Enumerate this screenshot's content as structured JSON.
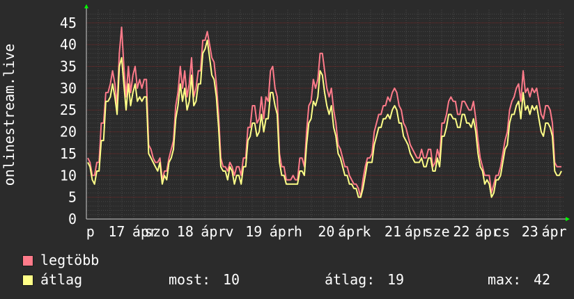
{
  "chart_data": {
    "type": "line",
    "ylabel": "onlinestream.live",
    "ylim": [
      0,
      48
    ],
    "yticks": [
      0,
      5,
      10,
      15,
      20,
      25,
      30,
      35,
      40,
      45
    ],
    "grid": true,
    "x_tick_labels": [
      "p",
      "17",
      "ápr",
      "szo",
      "18",
      "ápr",
      "v",
      "19",
      "ápr",
      "h",
      "20",
      "ápr",
      "k",
      "21",
      "ápr",
      "sze",
      "22",
      "ápr",
      "cs",
      "23",
      "ápr"
    ],
    "x_tick_positions": [
      0.1,
      0.75,
      1.45,
      1.75,
      2.45,
      3.15,
      3.55,
      4.15,
      4.85,
      5.25,
      5.95,
      6.55,
      6.95,
      7.6,
      8.2,
      8.7,
      9.3,
      9.95,
      10.3,
      11.0,
      11.6
    ],
    "x_range": [
      0,
      11.85
    ],
    "series": [
      {
        "name": "legtöbb",
        "color": "#ff7b8a",
        "values": [
          14,
          13,
          10,
          10,
          13,
          13,
          22,
          22,
          29,
          29,
          31,
          34,
          31,
          26,
          38,
          44,
          35,
          28,
          35,
          29,
          33,
          35,
          30,
          32,
          30,
          32,
          32,
          17,
          16,
          14,
          13,
          13,
          14,
          9,
          11,
          11,
          14,
          16,
          18,
          26,
          29,
          35,
          30,
          34,
          28,
          31,
          37,
          28,
          30,
          34,
          34,
          41,
          41,
          43,
          40,
          37,
          36,
          31,
          24,
          14,
          12,
          12,
          11,
          13,
          12,
          10,
          12,
          12,
          10,
          14,
          14,
          21,
          21,
          26,
          26,
          22,
          23,
          28,
          23,
          28,
          27,
          34,
          35,
          30,
          28,
          15,
          12,
          12,
          9,
          9,
          9,
          10,
          9,
          9,
          14,
          14,
          12,
          20,
          26,
          27,
          32,
          30,
          32,
          38,
          38,
          34,
          30,
          28,
          30,
          25,
          22,
          17,
          16,
          14,
          12,
          12,
          10,
          9,
          8,
          8,
          7,
          5,
          9,
          12,
          14,
          14,
          15,
          20,
          22,
          24,
          24,
          26,
          26,
          28,
          27,
          29,
          30,
          29,
          26,
          25,
          22,
          21,
          19,
          17,
          16,
          15,
          14,
          14,
          16,
          14,
          14,
          16,
          16,
          12,
          13,
          16,
          14,
          22,
          22,
          24,
          27,
          28,
          27,
          27,
          24,
          24,
          27,
          27,
          26,
          25,
          25,
          27,
          23,
          18,
          14,
          12,
          10,
          10,
          10,
          6,
          8,
          10,
          10,
          12,
          15,
          18,
          20,
          25,
          27,
          28,
          30,
          31,
          27,
          34,
          29,
          30,
          28,
          30,
          29,
          30,
          27,
          24,
          23,
          26,
          26,
          25,
          22,
          13,
          12,
          12,
          12
        ]
      },
      {
        "name": "átlag",
        "color": "#ffff88",
        "values": [
          13,
          12,
          9,
          8,
          11,
          11,
          18,
          18,
          27,
          27,
          28,
          31,
          28,
          24,
          35,
          37,
          31,
          25,
          31,
          26,
          29,
          31,
          27,
          28,
          27,
          28,
          28,
          15,
          14,
          13,
          12,
          11,
          13,
          8,
          10,
          9,
          13,
          14,
          16,
          23,
          26,
          31,
          27,
          30,
          25,
          27,
          33,
          26,
          27,
          31,
          31,
          38,
          39,
          41,
          37,
          33,
          32,
          28,
          21,
          12,
          11,
          11,
          9,
          12,
          11,
          8,
          10,
          10,
          8,
          12,
          12,
          18,
          19,
          22,
          22,
          19,
          20,
          24,
          20,
          23,
          23,
          29,
          29,
          26,
          24,
          13,
          10,
          10,
          8,
          8,
          8,
          8,
          8,
          8,
          11,
          11,
          10,
          17,
          22,
          23,
          27,
          26,
          28,
          34,
          33,
          29,
          26,
          24,
          26,
          21,
          19,
          15,
          14,
          12,
          10,
          10,
          8,
          8,
          7,
          7,
          5,
          5,
          7,
          10,
          13,
          13,
          13,
          17,
          19,
          21,
          21,
          23,
          23,
          24,
          23,
          25,
          26,
          25,
          22,
          22,
          19,
          18,
          17,
          15,
          14,
          13,
          13,
          13,
          14,
          12,
          12,
          14,
          14,
          11,
          11,
          14,
          12,
          19,
          19,
          21,
          24,
          24,
          23,
          23,
          21,
          21,
          24,
          24,
          22,
          22,
          21,
          23,
          20,
          15,
          12,
          11,
          8,
          9,
          8,
          5,
          6,
          9,
          9,
          10,
          13,
          16,
          17,
          22,
          24,
          24,
          26,
          27,
          23,
          29,
          25,
          26,
          24,
          26,
          25,
          26,
          23,
          20,
          19,
          22,
          22,
          21,
          19,
          11,
          10,
          10,
          11
        ]
      }
    ]
  },
  "legend": {
    "items": [
      {
        "label": "legtöbb",
        "color": "#ff7b8a"
      },
      {
        "label": "átlag",
        "color": "#ffff88"
      }
    ],
    "stats": {
      "current_label": "most:",
      "current_value": "10",
      "average_label": "átlag:",
      "average_value": "19",
      "max_label": "max:",
      "max_value": "42"
    }
  },
  "colors": {
    "background": "#2b2b2b",
    "plot_background": "#2b2b2b",
    "major_grid": "#7a2a2a",
    "minor_grid": "#4a4a4a",
    "axis_arrow": "#00ff00",
    "text": "#ffffff"
  }
}
